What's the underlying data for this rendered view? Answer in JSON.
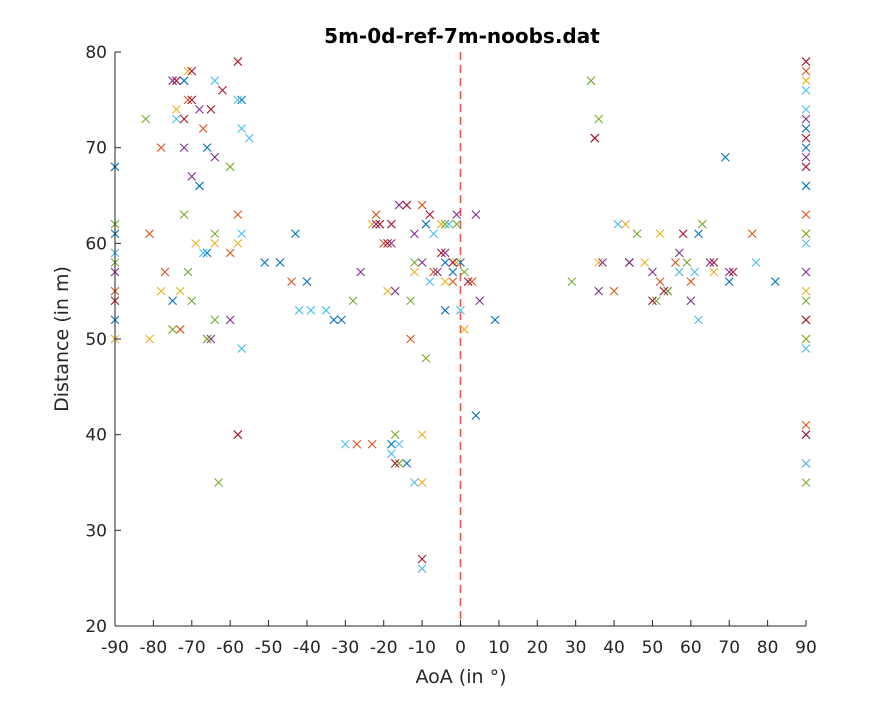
{
  "chart_data": {
    "type": "scatter",
    "title": "5m-0d-ref-7m-noobs.dat",
    "xlabel": "AoA (in °)",
    "ylabel": "Distance (in m)",
    "xlim": [
      -90,
      90
    ],
    "ylim": [
      20,
      80
    ],
    "xticks": [
      -90,
      -80,
      -70,
      -60,
      -50,
      -40,
      -30,
      -20,
      -10,
      0,
      10,
      20,
      30,
      40,
      50,
      60,
      70,
      80,
      90
    ],
    "yticks": [
      20,
      30,
      40,
      50,
      60,
      70,
      80
    ],
    "marker": "x",
    "grid": false,
    "legend": "none",
    "reference_line": {
      "x": 0,
      "style": "dashed",
      "color": "#ff4d4d"
    },
    "colors": [
      "#0072bd",
      "#d95319",
      "#edb120",
      "#7e2f8e",
      "#77ac30",
      "#4dbeee",
      "#a2142f"
    ],
    "series": [
      {
        "color": "#0072bd",
        "points": [
          [
            -90,
            68
          ],
          [
            -90,
            61
          ],
          [
            -90,
            52
          ],
          [
            -75,
            54
          ],
          [
            -72,
            77
          ],
          [
            -68,
            66
          ],
          [
            -66,
            70
          ],
          [
            -66,
            59
          ],
          [
            -57,
            75
          ],
          [
            -51,
            58
          ],
          [
            -47,
            58
          ],
          [
            -43,
            61
          ],
          [
            -40,
            56
          ],
          [
            -33,
            52
          ],
          [
            -31,
            52
          ],
          [
            -18,
            39
          ],
          [
            -14,
            37
          ],
          [
            -9,
            62
          ],
          [
            -4,
            53
          ],
          [
            -4,
            58
          ],
          [
            -2,
            57
          ],
          [
            0,
            58
          ],
          [
            4,
            42
          ],
          [
            9,
            52
          ],
          [
            35,
            71
          ],
          [
            44,
            58
          ],
          [
            62,
            61
          ],
          [
            69,
            69
          ],
          [
            70,
            56
          ],
          [
            82,
            56
          ],
          [
            90,
            70
          ],
          [
            90,
            72
          ],
          [
            90,
            66
          ],
          [
            90,
            40
          ]
        ]
      },
      {
        "color": "#d95319",
        "points": [
          [
            -90,
            55
          ],
          [
            -81,
            61
          ],
          [
            -78,
            70
          ],
          [
            -77,
            57
          ],
          [
            -73,
            51
          ],
          [
            -71,
            75
          ],
          [
            -67,
            72
          ],
          [
            -66,
            50
          ],
          [
            -60,
            59
          ],
          [
            -58,
            63
          ],
          [
            -58,
            40
          ],
          [
            -44,
            56
          ],
          [
            -27,
            39
          ],
          [
            -23,
            39
          ],
          [
            -22,
            63
          ],
          [
            -20,
            60
          ],
          [
            -13,
            50
          ],
          [
            -10,
            64
          ],
          [
            -7,
            57
          ],
          [
            -2,
            56
          ],
          [
            3,
            56
          ],
          [
            35,
            71
          ],
          [
            40,
            55
          ],
          [
            44,
            58
          ],
          [
            52,
            56
          ],
          [
            56,
            58
          ],
          [
            60,
            56
          ],
          [
            76,
            61
          ],
          [
            90,
            78
          ],
          [
            90,
            63
          ],
          [
            90,
            52
          ],
          [
            90,
            37
          ],
          [
            90,
            41
          ]
        ]
      },
      {
        "color": "#edb120",
        "points": [
          [
            -90,
            50
          ],
          [
            -81,
            50
          ],
          [
            -78,
            55
          ],
          [
            -74,
            74
          ],
          [
            -73,
            55
          ],
          [
            -71,
            78
          ],
          [
            -69,
            60
          ],
          [
            -64,
            60
          ],
          [
            -58,
            60
          ],
          [
            -23,
            62
          ],
          [
            -19,
            55
          ],
          [
            -16,
            37
          ],
          [
            -12,
            57
          ],
          [
            -10,
            40
          ],
          [
            -10,
            35
          ],
          [
            -10,
            26
          ],
          [
            -5,
            62
          ],
          [
            -4,
            56
          ],
          [
            -1,
            58
          ],
          [
            1,
            51
          ],
          [
            36,
            58
          ],
          [
            43,
            62
          ],
          [
            48,
            58
          ],
          [
            52,
            61
          ],
          [
            57,
            57
          ],
          [
            66,
            57
          ],
          [
            90,
            77
          ],
          [
            90,
            61
          ],
          [
            90,
            50
          ],
          [
            90,
            55
          ]
        ]
      },
      {
        "color": "#7e2f8e",
        "points": [
          [
            -90,
            57
          ],
          [
            -75,
            77
          ],
          [
            -72,
            70
          ],
          [
            -70,
            67
          ],
          [
            -68,
            74
          ],
          [
            -65,
            50
          ],
          [
            -64,
            69
          ],
          [
            -60,
            52
          ],
          [
            -26,
            57
          ],
          [
            -22,
            62
          ],
          [
            -18,
            60
          ],
          [
            -17,
            55
          ],
          [
            -16,
            64
          ],
          [
            -12,
            61
          ],
          [
            -10,
            58
          ],
          [
            -6,
            57
          ],
          [
            -4,
            59
          ],
          [
            -1,
            63
          ],
          [
            4,
            63
          ],
          [
            5,
            54
          ],
          [
            36,
            55
          ],
          [
            37,
            58
          ],
          [
            44,
            58
          ],
          [
            50,
            57
          ],
          [
            54,
            55
          ],
          [
            57,
            59
          ],
          [
            60,
            54
          ],
          [
            65,
            58
          ],
          [
            70,
            57
          ],
          [
            90,
            69
          ],
          [
            90,
            73
          ],
          [
            90,
            57
          ]
        ]
      },
      {
        "color": "#77ac30",
        "points": [
          [
            -90,
            62
          ],
          [
            -90,
            58
          ],
          [
            -82,
            73
          ],
          [
            -75,
            51
          ],
          [
            -72,
            63
          ],
          [
            -71,
            57
          ],
          [
            -70,
            54
          ],
          [
            -66,
            50
          ],
          [
            -64,
            52
          ],
          [
            -64,
            61
          ],
          [
            -63,
            35
          ],
          [
            -60,
            68
          ],
          [
            -28,
            54
          ],
          [
            -17,
            40
          ],
          [
            -16,
            37
          ],
          [
            -13,
            54
          ],
          [
            -12,
            58
          ],
          [
            -9,
            48
          ],
          [
            -4,
            62
          ],
          [
            -1,
            62
          ],
          [
            1,
            57
          ],
          [
            29,
            56
          ],
          [
            34,
            77
          ],
          [
            36,
            73
          ],
          [
            46,
            61
          ],
          [
            51,
            54
          ],
          [
            54,
            55
          ],
          [
            59,
            58
          ],
          [
            63,
            62
          ],
          [
            90,
            61
          ],
          [
            90,
            54
          ],
          [
            90,
            35
          ],
          [
            90,
            50
          ]
        ]
      },
      {
        "color": "#4dbeee",
        "points": [
          [
            -90,
            59
          ],
          [
            -74,
            73
          ],
          [
            -67,
            59
          ],
          [
            -64,
            77
          ],
          [
            -58,
            75
          ],
          [
            -57,
            61
          ],
          [
            -57,
            72
          ],
          [
            -57,
            49
          ],
          [
            -55,
            71
          ],
          [
            -42,
            53
          ],
          [
            -39,
            53
          ],
          [
            -35,
            53
          ],
          [
            -30,
            39
          ],
          [
            -18,
            38
          ],
          [
            -16,
            39
          ],
          [
            -12,
            35
          ],
          [
            -10,
            26
          ],
          [
            -8,
            56
          ],
          [
            -7,
            61
          ],
          [
            -3,
            62
          ],
          [
            0,
            53
          ],
          [
            41,
            62
          ],
          [
            57,
            57
          ],
          [
            61,
            57
          ],
          [
            62,
            52
          ],
          [
            77,
            58
          ],
          [
            90,
            76
          ],
          [
            90,
            74
          ],
          [
            90,
            60
          ],
          [
            90,
            49
          ],
          [
            90,
            37
          ]
        ]
      },
      {
        "color": "#a2142f",
        "points": [
          [
            -90,
            54
          ],
          [
            -74,
            77
          ],
          [
            -72,
            73
          ],
          [
            -70,
            78
          ],
          [
            -70,
            75
          ],
          [
            -65,
            74
          ],
          [
            -62,
            76
          ],
          [
            -58,
            79
          ],
          [
            -58,
            40
          ],
          [
            -21,
            62
          ],
          [
            -19,
            60
          ],
          [
            -18,
            62
          ],
          [
            -17,
            37
          ],
          [
            -14,
            64
          ],
          [
            -10,
            27
          ],
          [
            -8,
            63
          ],
          [
            -5,
            59
          ],
          [
            -2,
            58
          ],
          [
            2,
            56
          ],
          [
            35,
            71
          ],
          [
            50,
            54
          ],
          [
            53,
            55
          ],
          [
            58,
            61
          ],
          [
            66,
            58
          ],
          [
            71,
            57
          ],
          [
            90,
            79
          ],
          [
            90,
            71
          ],
          [
            90,
            68
          ],
          [
            90,
            52
          ],
          [
            90,
            40
          ]
        ]
      }
    ]
  }
}
